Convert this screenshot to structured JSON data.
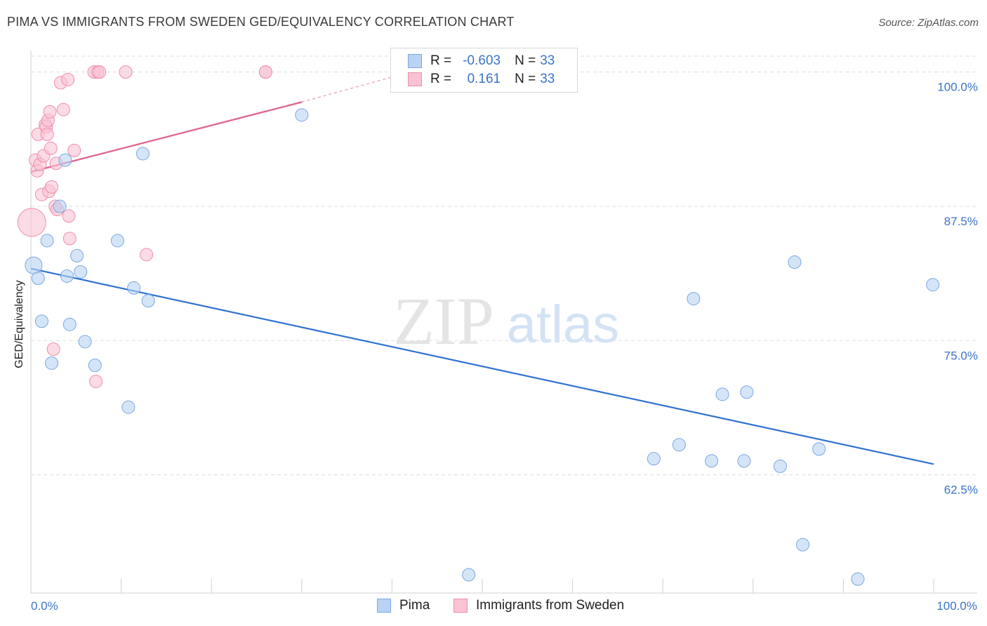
{
  "header": {
    "title": "PIMA VS IMMIGRANTS FROM SWEDEN GED/EQUIVALENCY CORRELATION CHART",
    "source": "Source: ZipAtlas.com"
  },
  "watermark": {
    "zip": "ZIP",
    "atlas": "atlas"
  },
  "colors": {
    "pima_fill": "#b9d3f4",
    "pima_stroke": "#7aa7e3",
    "pima_line": "#2f72d0",
    "sweden_fill": "#f9c3d3",
    "sweden_stroke": "#ef8eaa",
    "sweden_line": "#e0668e",
    "axis_text": "#3b74c9",
    "grid": "#dddddd"
  },
  "legend": {
    "rows": [
      {
        "r_label": "R =",
        "r_value": "-0.603",
        "n_label": "N =",
        "n_value": "33"
      },
      {
        "r_label": "R =",
        "r_value": "0.161",
        "n_label": "N =",
        "n_value": "33"
      }
    ]
  },
  "chart_data": {
    "type": "scatter",
    "title": "PIMA VS IMMIGRANTS FROM SWEDEN GED/EQUIVALENCY CORRELATION CHART",
    "xlabel": "",
    "ylabel": "GED/Equivalency",
    "xlim": [
      0,
      100
    ],
    "ylim": [
      51.5,
      102
    ],
    "x_tick_labels": [
      "0.0%",
      "100.0%"
    ],
    "y_ticks": [
      62.5,
      75.0,
      87.5,
      100.0
    ],
    "y_tick_labels": [
      "62.5%",
      "75.0%",
      "87.5%",
      "100.0%"
    ],
    "grid": true,
    "legend_position": "top-center",
    "series": [
      {
        "name": "Pima",
        "trend": {
          "x": [
            0,
            100
          ],
          "y": [
            81.7,
            63.5
          ]
        },
        "points": [
          [
            0.3,
            82.0,
            12
          ],
          [
            0.8,
            80.8,
            9
          ],
          [
            1.2,
            76.8,
            9
          ],
          [
            1.8,
            84.3,
            9
          ],
          [
            2.3,
            72.9,
            9
          ],
          [
            3.2,
            87.5,
            9
          ],
          [
            3.8,
            91.8,
            9
          ],
          [
            4.0,
            81.0,
            9
          ],
          [
            4.3,
            76.5,
            9
          ],
          [
            5.1,
            82.9,
            9
          ],
          [
            5.5,
            81.4,
            9
          ],
          [
            6.0,
            74.9,
            9
          ],
          [
            7.1,
            72.7,
            9
          ],
          [
            9.6,
            84.3,
            9
          ],
          [
            10.8,
            68.8,
            9
          ],
          [
            11.4,
            79.9,
            9
          ],
          [
            12.4,
            92.4,
            9
          ],
          [
            13.0,
            78.7,
            9
          ],
          [
            30.0,
            96.0,
            9
          ],
          [
            48.5,
            53.2,
            9
          ],
          [
            69.0,
            64.0,
            9
          ],
          [
            71.8,
            65.3,
            9
          ],
          [
            73.4,
            78.9,
            9
          ],
          [
            75.4,
            63.8,
            9
          ],
          [
            76.6,
            70.0,
            9
          ],
          [
            79.0,
            63.8,
            9
          ],
          [
            79.3,
            70.2,
            9
          ],
          [
            83.0,
            63.3,
            9
          ],
          [
            84.6,
            82.3,
            9
          ],
          [
            85.5,
            56.0,
            9
          ],
          [
            87.3,
            64.9,
            9
          ],
          [
            91.6,
            52.8,
            9
          ],
          [
            99.9,
            80.2,
            9
          ]
        ]
      },
      {
        "name": "Immigrants from Sweden",
        "trend": {
          "x": [
            0,
            30
          ],
          "y": [
            90.7,
            97.2
          ],
          "dashed_to": [
            42,
            100.0
          ]
        },
        "points": [
          [
            0.1,
            86.0,
            20
          ],
          [
            0.5,
            91.8,
            9
          ],
          [
            0.7,
            90.8,
            9
          ],
          [
            0.8,
            94.2,
            9
          ],
          [
            1.0,
            91.4,
            9
          ],
          [
            1.2,
            88.6,
            9
          ],
          [
            1.4,
            92.2,
            9
          ],
          [
            1.6,
            95.1,
            9
          ],
          [
            1.7,
            94.9,
            9
          ],
          [
            1.8,
            94.2,
            9
          ],
          [
            1.9,
            95.5,
            9
          ],
          [
            2.0,
            88.9,
            9
          ],
          [
            2.1,
            96.3,
            9
          ],
          [
            2.2,
            92.9,
            9
          ],
          [
            2.3,
            89.3,
            9
          ],
          [
            2.5,
            74.2,
            9
          ],
          [
            2.7,
            87.5,
            9
          ],
          [
            2.8,
            91.5,
            9
          ],
          [
            2.9,
            87.2,
            9
          ],
          [
            3.3,
            99.0,
            9
          ],
          [
            3.6,
            96.5,
            9
          ],
          [
            4.1,
            99.3,
            9
          ],
          [
            4.2,
            86.6,
            9
          ],
          [
            4.3,
            84.5,
            9
          ],
          [
            4.8,
            92.7,
            9
          ],
          [
            7.0,
            100.0,
            9
          ],
          [
            7.2,
            71.2,
            9
          ],
          [
            7.4,
            100.0,
            9
          ],
          [
            7.6,
            100.0,
            9
          ],
          [
            10.5,
            100.0,
            9
          ],
          [
            12.8,
            83.0,
            9
          ],
          [
            26.0,
            100.0,
            9
          ],
          [
            26.0,
            100.0,
            9
          ]
        ]
      }
    ]
  }
}
